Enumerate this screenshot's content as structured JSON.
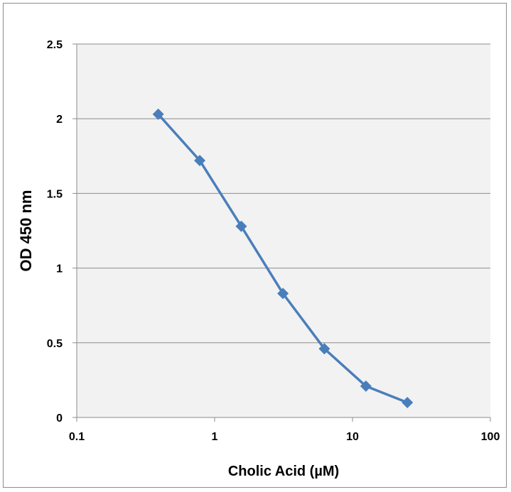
{
  "chart_data": {
    "type": "line",
    "title": "",
    "xlabel": "Cholic Acid (µM)",
    "ylabel": "OD 450 nm",
    "xscale": "log",
    "xlim": [
      0.1,
      100
    ],
    "ylim": [
      0,
      2.5
    ],
    "x_tick_labels": [
      "0.1",
      "1",
      "10",
      "100"
    ],
    "y_tick_labels": [
      "0",
      "0.5",
      "1",
      "1.5",
      "2",
      "2.5"
    ],
    "grid": "horizontal",
    "legend": "none",
    "series": [
      {
        "color": "#4a7ebb",
        "marker": "diamond",
        "x": [
          0.39,
          0.78,
          1.56,
          3.13,
          6.25,
          12.5,
          25
        ],
        "y": [
          2.03,
          1.72,
          1.28,
          0.83,
          0.46,
          0.21,
          0.1
        ]
      }
    ],
    "colors": {
      "plot_background": "#f2f2f2",
      "gridline": "#8c8c8c",
      "series": "#4a7ebb"
    }
  }
}
